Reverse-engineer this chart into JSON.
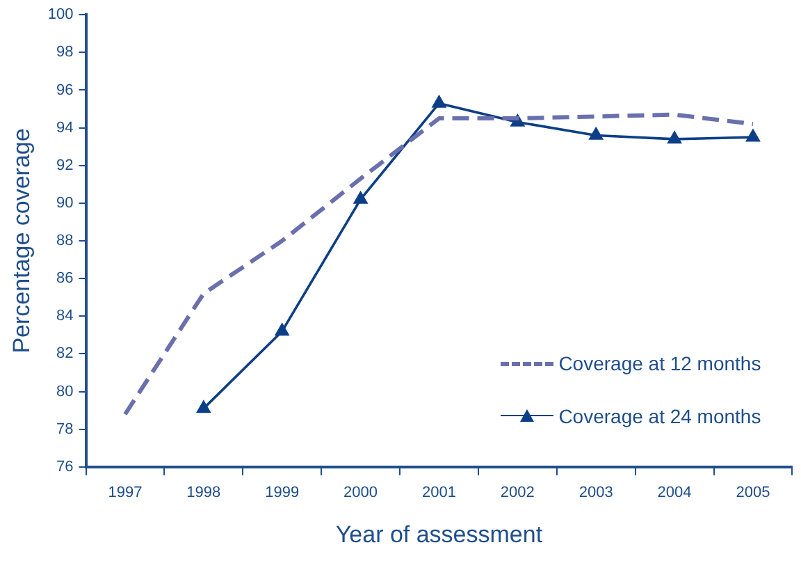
{
  "chart_data": {
    "type": "line",
    "xlabel": "Year of assessment",
    "ylabel": "Percentage coverage",
    "categories": [
      "1997",
      "1998",
      "1999",
      "2000",
      "2001",
      "2002",
      "2003",
      "2004",
      "2005"
    ],
    "series": [
      {
        "name": "Coverage at 12 months",
        "color": "#6a70ad",
        "line_style": "dashed",
        "marker": "none",
        "values": [
          78.8,
          85.2,
          88.0,
          91.3,
          94.5,
          94.5,
          94.6,
          94.7,
          94.2
        ]
      },
      {
        "name": "Coverage at 24 months",
        "color": "#0d3f87",
        "line_style": "solid",
        "marker": "triangle",
        "values": [
          null,
          79.1,
          83.2,
          90.2,
          95.3,
          94.3,
          93.6,
          93.4,
          93.5
        ]
      }
    ],
    "ylim": [
      76,
      100
    ],
    "yticks": [
      76,
      78,
      80,
      82,
      84,
      86,
      88,
      90,
      92,
      94,
      96,
      98,
      100
    ],
    "grid": false,
    "legend": "bottom right"
  }
}
